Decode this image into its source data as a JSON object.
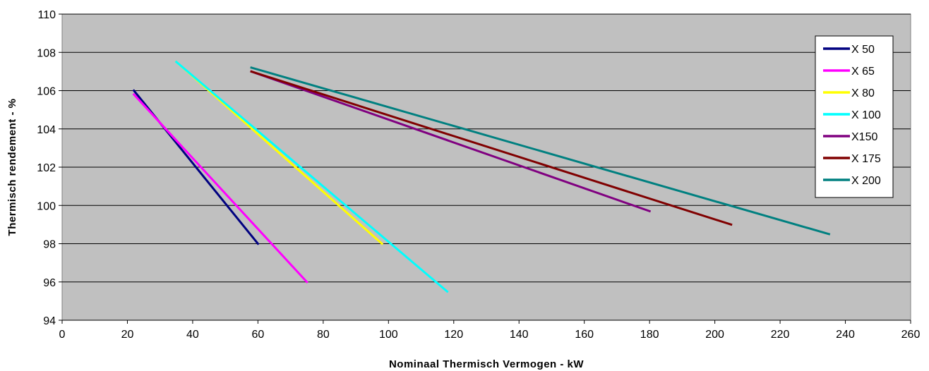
{
  "chart_data": {
    "type": "line",
    "xlabel": "Nominaal Thermisch Vermogen  -  kW",
    "ylabel": "Thermisch rendement  -  %",
    "xlim": [
      0,
      260
    ],
    "ylim": [
      94,
      110
    ],
    "xticks": [
      0,
      20,
      40,
      60,
      80,
      100,
      120,
      140,
      160,
      180,
      200,
      220,
      240,
      260
    ],
    "yticks": [
      94,
      96,
      98,
      100,
      102,
      104,
      106,
      108,
      110
    ],
    "grid": "horizontal",
    "plot_background": "#c0c0c0",
    "legend_position": "right",
    "series": [
      {
        "name": "X 50",
        "color": "#000080",
        "x": [
          22,
          60
        ],
        "y": [
          106.0,
          98.0
        ]
      },
      {
        "name": "X 65",
        "color": "#ff00ff",
        "x": [
          22,
          75
        ],
        "y": [
          105.8,
          96.0
        ]
      },
      {
        "name": "X 80",
        "color": "#ffff00",
        "x": [
          35,
          98
        ],
        "y": [
          107.5,
          98.0
        ]
      },
      {
        "name": "X 100",
        "color": "#00ffff",
        "x": [
          35,
          118
        ],
        "y": [
          107.5,
          95.5
        ]
      },
      {
        "name": "X150",
        "color": "#800080",
        "x": [
          58,
          180
        ],
        "y": [
          107.0,
          99.7
        ]
      },
      {
        "name": "X 175",
        "color": "#800000",
        "x": [
          58,
          205
        ],
        "y": [
          107.0,
          99.0
        ]
      },
      {
        "name": "X 200",
        "color": "#008080",
        "x": [
          58,
          235
        ],
        "y": [
          107.2,
          98.5
        ]
      }
    ]
  }
}
